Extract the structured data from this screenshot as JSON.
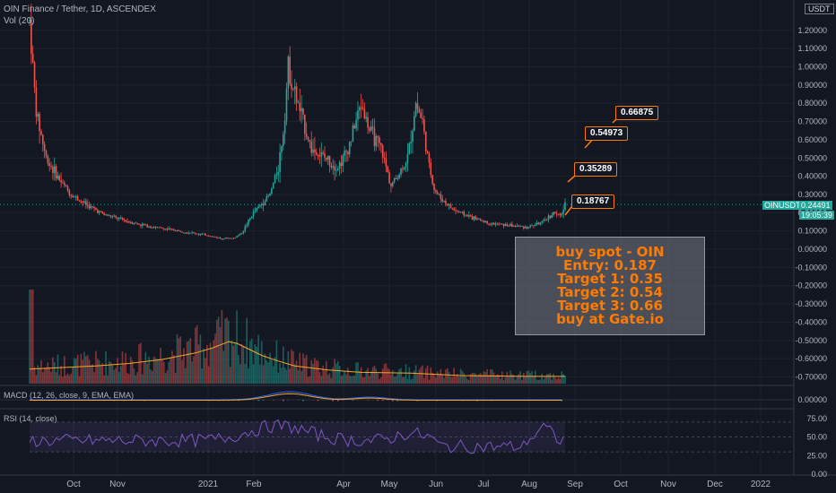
{
  "header": {
    "title": "OIN Finance / Tether, 1D, ASCENDEX",
    "volume_label": "Vol (20)"
  },
  "currency_badge": "USDT",
  "price_tag": {
    "symbol": "OINUSDT",
    "value": "0.24491",
    "countdown": "19:05:39"
  },
  "macd_label": "MACD (12, 26, close, 9, EMA, EMA)",
  "rsi_label": "RSI (14, close)",
  "note_lines": [
    "buy spot - OIN",
    "Entry: 0.187",
    "Target 1: 0.35",
    "Target 2: 0.54",
    "Target 3: 0.66",
    "buy at Gate.io"
  ],
  "targets": [
    "0.18767",
    "0.35289",
    "0.54973",
    "0.66875"
  ],
  "colors": {
    "up": "#26a69a",
    "down": "#ef5350",
    "ema": "#f6a623",
    "rsi": "#7e57c2",
    "accent": "#ff7a00",
    "background": "#131722"
  },
  "chart_data": {
    "type": "candlestick",
    "title": "OIN Finance / Tether, 1D, ASCENDEX",
    "x_ticks": [
      "Oct",
      "Nov",
      "2021",
      "Feb",
      "Apr",
      "May",
      "Jun",
      "Jul",
      "Aug",
      "Sep",
      "Oct",
      "Nov",
      "Dec",
      "2022"
    ],
    "y_ticks": [
      "1.20000",
      "1.10000",
      "1.00000",
      "0.90000",
      "0.80000",
      "0.70000",
      "0.60000",
      "0.50000",
      "0.40000",
      "0.30000",
      "0.20000",
      "0.10000",
      "0.00000",
      "-0.10000",
      "-0.20000",
      "-0.30000",
      "-0.40000",
      "-0.50000",
      "-0.60000",
      "-0.70000"
    ],
    "macd_ticks": [
      "0.00000"
    ],
    "rsi_ticks": [
      "75.00",
      "50.00",
      "25.00",
      "0.00"
    ],
    "ylim": [
      -0.75,
      1.28
    ],
    "price_path": [
      [
        0,
        1.25
      ],
      [
        4,
        0.75
      ],
      [
        10,
        0.5
      ],
      [
        18,
        0.38
      ],
      [
        25,
        0.3
      ],
      [
        35,
        0.24
      ],
      [
        45,
        0.19
      ],
      [
        60,
        0.15
      ],
      [
        75,
        0.12
      ],
      [
        90,
        0.1
      ],
      [
        105,
        0.08
      ],
      [
        115,
        0.06
      ],
      [
        123,
        0.06
      ],
      [
        128,
        0.09
      ],
      [
        135,
        0.2
      ],
      [
        140,
        0.25
      ],
      [
        145,
        0.3
      ],
      [
        150,
        0.45
      ],
      [
        153,
        0.65
      ],
      [
        156,
        1.0
      ],
      [
        160,
        0.85
      ],
      [
        165,
        0.7
      ],
      [
        170,
        0.55
      ],
      [
        178,
        0.5
      ],
      [
        186,
        0.45
      ],
      [
        192,
        0.55
      ],
      [
        200,
        0.8
      ],
      [
        205,
        0.65
      ],
      [
        212,
        0.55
      ],
      [
        218,
        0.35
      ],
      [
        222,
        0.4
      ],
      [
        228,
        0.5
      ],
      [
        233,
        0.8
      ],
      [
        237,
        0.7
      ],
      [
        240,
        0.5
      ],
      [
        244,
        0.33
      ],
      [
        248,
        0.28
      ],
      [
        255,
        0.22
      ],
      [
        265,
        0.18
      ],
      [
        278,
        0.14
      ],
      [
        290,
        0.13
      ],
      [
        300,
        0.12
      ],
      [
        310,
        0.15
      ],
      [
        316,
        0.2
      ],
      [
        320,
        0.18
      ],
      [
        323,
        0.24
      ]
    ],
    "volume_ema": [
      [
        0,
        0.18
      ],
      [
        20,
        0.2
      ],
      [
        40,
        0.22
      ],
      [
        60,
        0.25
      ],
      [
        80,
        0.3
      ],
      [
        100,
        0.38
      ],
      [
        110,
        0.44
      ],
      [
        115,
        0.48
      ],
      [
        120,
        0.52
      ],
      [
        125,
        0.5
      ],
      [
        130,
        0.45
      ],
      [
        140,
        0.35
      ],
      [
        150,
        0.28
      ],
      [
        160,
        0.22
      ],
      [
        180,
        0.17
      ],
      [
        200,
        0.14
      ],
      [
        230,
        0.13
      ],
      [
        260,
        0.1
      ],
      [
        300,
        0.09
      ],
      [
        323,
        0.09
      ]
    ],
    "rsi_range": [
      0,
      100
    ],
    "rsi_bands": [
      30,
      70
    ]
  }
}
